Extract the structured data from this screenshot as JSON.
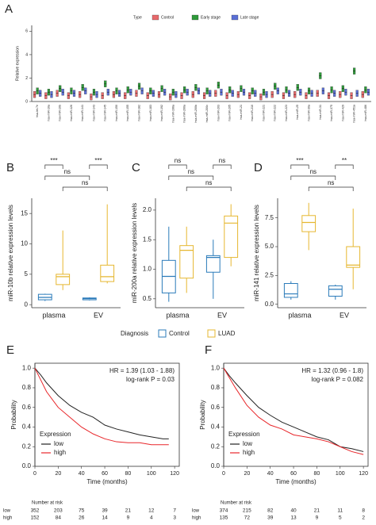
{
  "chart_data": [
    {
      "type": "grouped_box",
      "label": "A",
      "ylabel": "Relative expression",
      "legend_title": "Type",
      "categories": [
        "hsa-let-7e",
        "hsa-miR-10a",
        "hsa-miR-10b",
        "hsa-miR-126",
        "hsa-miR-141",
        "hsa-miR-143",
        "hsa-miR-145",
        "hsa-miR-150",
        "hsa-miR-155",
        "hsa-miR-182",
        "hsa-miR-183",
        "hsa-miR-192",
        "hsa-miR-196a",
        "hsa-miR-200a",
        "hsa-miR-200b",
        "hsa-miR-200c",
        "hsa-miR-203",
        "hsa-miR-205",
        "hsa-miR-21",
        "hsa-miR-210",
        "hsa-miR-221",
        "hsa-miR-222",
        "hsa-miR-223",
        "hsa-miR-25",
        "hsa-miR-30a",
        "hsa-miR-31",
        "hsa-miR-375",
        "hsa-miR-429",
        "hsa-miR-451a",
        "hsa-miR-486"
      ],
      "series": [
        {
          "name": "Control",
          "color": "#e8696b",
          "values": [
            0.6,
            0.5,
            0.7,
            0.5,
            0.6,
            0.4,
            0.5,
            0.6,
            0.5,
            0.7,
            0.5,
            0.6,
            0.4,
            0.5,
            0.6,
            0.5,
            0.7,
            0.5,
            0.6,
            0.5,
            0.4,
            0.6,
            0.5,
            0.6,
            0.5,
            0.7,
            0.5,
            0.6,
            0.5,
            0.6
          ]
        },
        {
          "name": "Early stage",
          "color": "#2e9a3a",
          "values": [
            0.9,
            0.8,
            1.1,
            0.9,
            1.2,
            0.8,
            1.5,
            0.9,
            1.0,
            1.3,
            0.9,
            1.1,
            0.8,
            1.0,
            1.2,
            0.9,
            1.4,
            1.0,
            1.1,
            0.9,
            0.8,
            1.3,
            1.0,
            1.2,
            0.9,
            2.2,
            1.0,
            1.1,
            2.6,
            1.0
          ]
        },
        {
          "name": "Late stage",
          "color": "#5a6fd6",
          "values": [
            0.7,
            0.6,
            0.8,
            0.7,
            0.9,
            0.6,
            0.8,
            0.7,
            0.8,
            0.9,
            0.7,
            0.8,
            0.6,
            0.8,
            0.9,
            0.7,
            0.8,
            0.7,
            0.8,
            0.7,
            0.6,
            0.9,
            0.7,
            0.8,
            0.7,
            0.9,
            0.7,
            0.8,
            0.7,
            0.8
          ]
        }
      ],
      "ylim": [
        0,
        6.5
      ],
      "yticks": [
        0,
        2,
        4,
        6
      ]
    },
    {
      "type": "box",
      "label": "B",
      "ylabel": "miR-10b relative expression levels",
      "categories": [
        "plasma",
        "EV"
      ],
      "ylim": [
        -0.5,
        17.5
      ],
      "yticks": [
        0,
        5,
        10,
        15
      ],
      "annotations": [
        "***",
        "ns",
        "ns",
        "***"
      ],
      "series": [
        {
          "color": "#2b7bba",
          "boxes": [
            {
              "low": 0.6,
              "q1": 0.8,
              "median": 1.2,
              "q3": 1.7,
              "high": 1.8
            },
            {
              "low": 0.7,
              "q1": 0.8,
              "median": 1.0,
              "q3": 1.1,
              "high": 1.2
            }
          ]
        },
        {
          "color": "#e6b730",
          "boxes": [
            {
              "low": 2.4,
              "q1": 3.3,
              "median": 4.6,
              "q3": 5.0,
              "high": 12.2
            },
            {
              "low": 3.5,
              "q1": 3.8,
              "median": 4.6,
              "q3": 6.5,
              "high": 16.5
            }
          ]
        }
      ]
    },
    {
      "type": "box",
      "label": "C",
      "ylabel": "miR-200a relative expression levels",
      "categories": [
        "plasma",
        "EV"
      ],
      "ylim": [
        0.35,
        2.2
      ],
      "yticks": [
        0.5,
        {
          "value": 1,
          "label": "1.0"
        },
        1.5,
        {
          "value": 2,
          "label": "2.0"
        }
      ],
      "annotations": [
        "ns",
        "ns",
        "ns",
        "ns"
      ],
      "series": [
        {
          "color": "#2b7bba",
          "boxes": [
            {
              "low": 0.45,
              "q1": 0.6,
              "median": 0.88,
              "q3": 1.15,
              "high": 1.72
            },
            {
              "low": 0.5,
              "q1": 0.95,
              "median": 1.2,
              "q3": 1.23,
              "high": 1.5
            }
          ]
        },
        {
          "color": "#e6b730",
          "boxes": [
            {
              "low": 0.6,
              "q1": 0.85,
              "median": 1.32,
              "q3": 1.4,
              "high": 1.72
            },
            {
              "low": 1.05,
              "q1": 1.2,
              "median": 1.78,
              "q3": 1.9,
              "high": 2.1
            }
          ]
        }
      ]
    },
    {
      "type": "box",
      "label": "D",
      "ylabel": "miR-141 relative expression levels",
      "categories": [
        "plasma",
        "EV"
      ],
      "ylim": [
        -0.3,
        9.2
      ],
      "yticks": [
        {
          "value": 0,
          "label": "0.0"
        },
        2.5,
        {
          "value": 5,
          "label": "5.0"
        },
        7.5
      ],
      "annotations": [
        "***",
        "ns",
        "ns",
        "**"
      ],
      "series": [
        {
          "color": "#2b7bba",
          "boxes": [
            {
              "low": 0.4,
              "q1": 0.6,
              "median": 0.9,
              "q3": 1.8,
              "high": 2.0
            },
            {
              "low": 0.4,
              "q1": 0.7,
              "median": 1.3,
              "q3": 1.6,
              "high": 1.7
            }
          ]
        },
        {
          "color": "#e6b730",
          "boxes": [
            {
              "low": 4.7,
              "q1": 6.3,
              "median": 7.1,
              "q3": 7.7,
              "high": 8.8
            },
            {
              "low": 1.3,
              "q1": 3.2,
              "median": 3.4,
              "q3": 5.0,
              "high": 8.3
            }
          ]
        }
      ]
    },
    {
      "type": "survival",
      "label": "E",
      "xlabel": "Time (months)",
      "ylabel": "Probability",
      "legend_title": "Expression",
      "annotations": [
        "HR = 1.39 (1.03 - 1.88)",
        "log-rank P = 0.03"
      ],
      "x": [
        0,
        5,
        10,
        20,
        30,
        40,
        50,
        60,
        70,
        80,
        90,
        100,
        110,
        115
      ],
      "series": [
        {
          "name": "low",
          "color": "#222222",
          "values": [
            1,
            0.93,
            0.85,
            0.72,
            0.62,
            0.55,
            0.5,
            0.42,
            0.38,
            0.35,
            0.32,
            0.3,
            0.28,
            0.28
          ]
        },
        {
          "name": "high",
          "color": "#e8262a",
          "values": [
            1,
            0.88,
            0.76,
            0.6,
            0.5,
            0.4,
            0.33,
            0.28,
            0.25,
            0.24,
            0.24,
            0.22,
            0.22,
            0.22
          ]
        }
      ],
      "xlim": [
        0,
        124
      ],
      "xticks": [
        0,
        20,
        40,
        60,
        80,
        100,
        120
      ],
      "ylim": [
        0,
        1.05
      ],
      "yticks": [
        {
          "value": 0,
          "label": "0.0"
        },
        0.2,
        0.4,
        0.6,
        0.8,
        {
          "value": 1,
          "label": "1.0"
        }
      ],
      "risk_title": "Number at risk",
      "risk": [
        {
          "name": "low",
          "color": "#222222",
          "values": [
            352,
            203,
            75,
            39,
            21,
            12,
            7
          ]
        },
        {
          "name": "high",
          "color": "#e8262a",
          "values": [
            152,
            84,
            26,
            14,
            9,
            4,
            3
          ]
        }
      ]
    },
    {
      "type": "survival",
      "label": "F",
      "xlabel": "Time (months)",
      "ylabel": "Probability",
      "legend_title": "Expression",
      "annotations": [
        "HR = 1.32 (0.96 - 1.8)",
        "log-rank P = 0.082"
      ],
      "x": [
        0,
        5,
        10,
        20,
        30,
        40,
        50,
        60,
        70,
        80,
        90,
        100,
        110,
        120
      ],
      "series": [
        {
          "name": "low",
          "color": "#222222",
          "values": [
            1,
            0.92,
            0.85,
            0.72,
            0.6,
            0.52,
            0.45,
            0.4,
            0.35,
            0.3,
            0.27,
            0.2,
            0.18,
            0.15
          ]
        },
        {
          "name": "high",
          "color": "#e8262a",
          "values": [
            1,
            0.9,
            0.8,
            0.62,
            0.5,
            0.42,
            0.38,
            0.32,
            0.3,
            0.28,
            0.25,
            0.2,
            0.15,
            0.12
          ]
        }
      ],
      "xlim": [
        0,
        124
      ],
      "xticks": [
        0,
        20,
        40,
        60,
        80,
        100,
        120
      ],
      "ylim": [
        0,
        1.05
      ],
      "yticks": [
        {
          "value": 0,
          "label": "0.0"
        },
        0.2,
        0.4,
        0.6,
        0.8,
        {
          "value": 1,
          "label": "1.0"
        }
      ],
      "risk_title": "Number at risk",
      "risk": [
        {
          "name": "low",
          "color": "#222222",
          "values": [
            374,
            215,
            82,
            40,
            21,
            11,
            8
          ]
        },
        {
          "name": "high",
          "color": "#e8262a",
          "values": [
            135,
            72,
            39,
            13,
            9,
            5,
            2
          ]
        }
      ]
    }
  ],
  "shared_legend": {
    "title": "Diagnosis",
    "items": [
      {
        "name": "Control",
        "color": "#2b7bba"
      },
      {
        "name": "LUAD",
        "color": "#e6b730"
      }
    ]
  }
}
